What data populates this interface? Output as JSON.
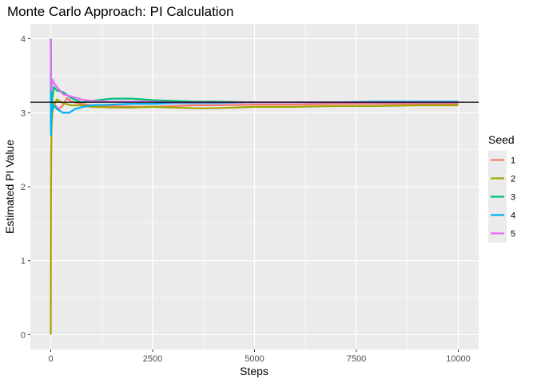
{
  "chart_data": {
    "type": "line",
    "title": "Monte Carlo Approach: PI Calculation",
    "xlabel": "Steps",
    "ylabel": "Estimated PI Value",
    "xlim": [
      -500,
      10500
    ],
    "ylim": [
      -0.2,
      4.2
    ],
    "x_ticks": [
      0,
      2500,
      5000,
      7500,
      10000
    ],
    "x_tick_labels": [
      "0",
      "2500",
      "5000",
      "7500",
      "10000"
    ],
    "y_ticks": [
      0,
      1,
      2,
      3,
      4
    ],
    "y_tick_labels": [
      "0",
      "1",
      "2",
      "3",
      "4"
    ],
    "grid": true,
    "legend": {
      "title": "Seed",
      "position": "right"
    },
    "reference_line": {
      "y": 3.14159,
      "color": "#000000"
    },
    "series": [
      {
        "name": "1",
        "color": "#F8766D",
        "points": [
          [
            1,
            4.0
          ],
          [
            4,
            3.6
          ],
          [
            10,
            3.4
          ],
          [
            25,
            3.2
          ],
          [
            50,
            3.15
          ],
          [
            100,
            3.1
          ],
          [
            200,
            3.05
          ],
          [
            300,
            3.1
          ],
          [
            400,
            3.2
          ],
          [
            500,
            3.15
          ],
          [
            750,
            3.12
          ],
          [
            1000,
            3.1
          ],
          [
            1500,
            3.09
          ],
          [
            2000,
            3.08
          ],
          [
            2500,
            3.08
          ],
          [
            3000,
            3.09
          ],
          [
            3500,
            3.1
          ],
          [
            4000,
            3.1
          ],
          [
            5000,
            3.11
          ],
          [
            6000,
            3.11
          ],
          [
            7000,
            3.12
          ],
          [
            8000,
            3.12
          ],
          [
            9000,
            3.12
          ],
          [
            10000,
            3.12
          ]
        ]
      },
      {
        "name": "2",
        "color": "#A3A500",
        "points": [
          [
            1,
            0.0
          ],
          [
            5,
            1.6
          ],
          [
            10,
            2.4
          ],
          [
            20,
            2.8
          ],
          [
            40,
            3.0
          ],
          [
            80,
            3.1
          ],
          [
            150,
            3.18
          ],
          [
            300,
            3.13
          ],
          [
            500,
            3.1
          ],
          [
            750,
            3.1
          ],
          [
            1000,
            3.08
          ],
          [
            1500,
            3.07
          ],
          [
            2000,
            3.07
          ],
          [
            2500,
            3.08
          ],
          [
            3000,
            3.07
          ],
          [
            3500,
            3.06
          ],
          [
            4000,
            3.06
          ],
          [
            4500,
            3.07
          ],
          [
            5000,
            3.08
          ],
          [
            6000,
            3.08
          ],
          [
            7000,
            3.09
          ],
          [
            8000,
            3.09
          ],
          [
            9000,
            3.1
          ],
          [
            10000,
            3.1
          ]
        ]
      },
      {
        "name": "3",
        "color": "#00BF7D",
        "points": [
          [
            1,
            4.0
          ],
          [
            5,
            3.2
          ],
          [
            10,
            2.8
          ],
          [
            20,
            3.0
          ],
          [
            40,
            3.2
          ],
          [
            80,
            3.35
          ],
          [
            150,
            3.3
          ],
          [
            300,
            3.28
          ],
          [
            500,
            3.2
          ],
          [
            750,
            3.14
          ],
          [
            1000,
            3.16
          ],
          [
            1500,
            3.19
          ],
          [
            2000,
            3.19
          ],
          [
            2500,
            3.17
          ],
          [
            3000,
            3.16
          ],
          [
            3500,
            3.15
          ],
          [
            4000,
            3.15
          ],
          [
            5000,
            3.14
          ],
          [
            6000,
            3.14
          ],
          [
            7000,
            3.14
          ],
          [
            8000,
            3.14
          ],
          [
            9000,
            3.14
          ],
          [
            10000,
            3.14
          ]
        ]
      },
      {
        "name": "4",
        "color": "#00B0F6",
        "points": [
          [
            1,
            4.0
          ],
          [
            5,
            2.7
          ],
          [
            10,
            2.9
          ],
          [
            20,
            3.0
          ],
          [
            40,
            3.05
          ],
          [
            80,
            3.1
          ],
          [
            150,
            3.05
          ],
          [
            300,
            3.0
          ],
          [
            450,
            3.0
          ],
          [
            600,
            3.05
          ],
          [
            800,
            3.08
          ],
          [
            1000,
            3.1
          ],
          [
            1500,
            3.11
          ],
          [
            2000,
            3.12
          ],
          [
            2500,
            3.12
          ],
          [
            3000,
            3.13
          ],
          [
            3500,
            3.13
          ],
          [
            4000,
            3.13
          ],
          [
            5000,
            3.14
          ],
          [
            6000,
            3.14
          ],
          [
            7000,
            3.14
          ],
          [
            8000,
            3.15
          ],
          [
            9000,
            3.15
          ],
          [
            10000,
            3.15
          ]
        ]
      },
      {
        "name": "5",
        "color": "#E76BF3",
        "points": [
          [
            1,
            4.0
          ],
          [
            5,
            3.6
          ],
          [
            10,
            3.4
          ],
          [
            20,
            3.3
          ],
          [
            40,
            3.45
          ],
          [
            80,
            3.4
          ],
          [
            150,
            3.35
          ],
          [
            300,
            3.25
          ],
          [
            500,
            3.22
          ],
          [
            750,
            3.18
          ],
          [
            1000,
            3.16
          ],
          [
            1500,
            3.15
          ],
          [
            2000,
            3.15
          ],
          [
            2500,
            3.15
          ],
          [
            3000,
            3.14
          ],
          [
            3500,
            3.14
          ],
          [
            4000,
            3.14
          ],
          [
            5000,
            3.14
          ],
          [
            6000,
            3.14
          ],
          [
            7000,
            3.14
          ],
          [
            8000,
            3.14
          ],
          [
            9000,
            3.14
          ],
          [
            10000,
            3.14
          ]
        ]
      }
    ]
  }
}
